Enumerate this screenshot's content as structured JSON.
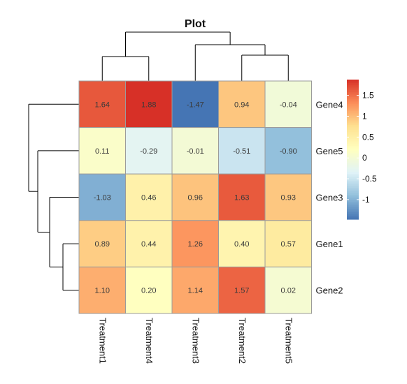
{
  "chart_data": {
    "type": "heatmap",
    "title": "Plot",
    "rows": [
      "Gene4",
      "Gene5",
      "Gene3",
      "Gene1",
      "Gene2"
    ],
    "columns": [
      "Treatment1",
      "Treatment4",
      "Treatment3",
      "Treatment2",
      "Treatment5"
    ],
    "values": [
      [
        1.64,
        1.88,
        -1.47,
        0.94,
        -0.04
      ],
      [
        0.11,
        -0.29,
        -0.01,
        -0.51,
        -0.9
      ],
      [
        -1.03,
        0.46,
        0.96,
        1.63,
        0.93
      ],
      [
        0.89,
        0.44,
        1.26,
        0.4,
        0.57
      ],
      [
        1.1,
        0.2,
        1.14,
        1.57,
        0.02
      ]
    ],
    "cell_labels": [
      [
        "1.64",
        "1.88",
        "-1.47",
        "0.94",
        "-0.04"
      ],
      [
        "0.11",
        "-0.29",
        "-0.01",
        "-0.51",
        "-0.90"
      ],
      [
        "-1.03",
        "0.46",
        "0.96",
        "1.63",
        "0.93"
      ],
      [
        "0.89",
        "0.44",
        "1.26",
        "0.40",
        "0.57"
      ],
      [
        "1.10",
        "0.20",
        "1.14",
        "1.57",
        "0.02"
      ]
    ],
    "color_scale": {
      "min": -1.47,
      "max": 1.88,
      "colors": [
        "#4575B4",
        "#91BFDB",
        "#E0F3F8",
        "#FFFFBF",
        "#FEE090",
        "#FC8D59",
        "#D73027"
      ],
      "tick_values": [
        -1,
        -0.5,
        0,
        0.5,
        1,
        1.5
      ],
      "tick_labels": [
        "-1",
        "-0.5",
        "0",
        "0.5",
        "1",
        "1.5"
      ]
    },
    "legend": "right",
    "grid": true
  }
}
